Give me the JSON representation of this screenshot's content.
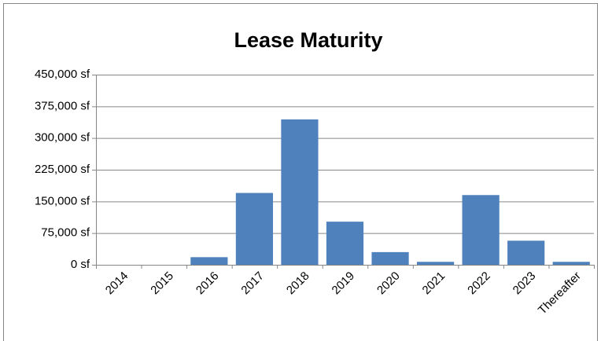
{
  "chart_data": {
    "type": "bar",
    "title": "Lease Maturity",
    "categories": [
      "2014",
      "2015",
      "2016",
      "2017",
      "2018",
      "2019",
      "2020",
      "2021",
      "2022",
      "2023",
      "Thereafter"
    ],
    "values": [
      0,
      0,
      18000,
      170000,
      344000,
      102000,
      30000,
      7000,
      165000,
      57000,
      7000
    ],
    "color": "#4f81bd",
    "ylim": [
      0,
      450000
    ],
    "yticks": [
      {
        "value": 0,
        "label": "0 sf"
      },
      {
        "value": 75000,
        "label": "75,000 sf"
      },
      {
        "value": 150000,
        "label": "150,000 sf"
      },
      {
        "value": 225000,
        "label": "225,000 sf"
      },
      {
        "value": 300000,
        "label": "300,000 sf"
      },
      {
        "value": 375000,
        "label": "375,000 sf"
      },
      {
        "value": 450000,
        "label": "450,000 sf"
      }
    ],
    "grid": true
  }
}
